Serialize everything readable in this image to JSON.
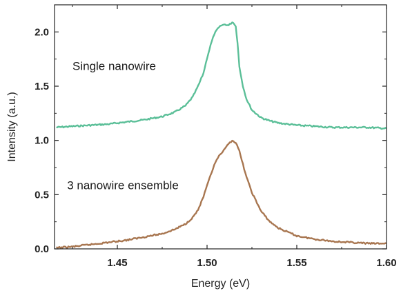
{
  "chart_data": {
    "type": "line",
    "title": "",
    "xlabel": "Energy (eV)",
    "ylabel": "Intensity (a.u.)",
    "xlim": [
      1.415,
      1.6
    ],
    "ylim": [
      0.0,
      2.25
    ],
    "xticks": [
      {
        "value": 1.45,
        "label": "1.45"
      },
      {
        "value": 1.5,
        "label": "1.50"
      },
      {
        "value": 1.55,
        "label": "1.55"
      },
      {
        "value": 1.6,
        "label": "1.60"
      }
    ],
    "yticks": [
      {
        "value": 0.0,
        "label": "0.0"
      },
      {
        "value": 0.5,
        "label": "0.5"
      },
      {
        "value": 1.0,
        "label": "1.0"
      },
      {
        "value": 1.5,
        "label": "1.5"
      },
      {
        "value": 2.0,
        "label": "2.0"
      }
    ],
    "grid": false,
    "series": [
      {
        "color": "#5bbf98",
        "x": [
          1.416,
          1.425,
          1.435,
          1.445,
          1.455,
          1.465,
          1.475,
          1.482,
          1.488,
          1.492,
          1.495,
          1.498,
          1.5,
          1.502,
          1.504,
          1.506,
          1.508,
          1.51,
          1.512,
          1.514,
          1.515,
          1.516,
          1.517,
          1.518,
          1.52,
          1.522,
          1.525,
          1.53,
          1.535,
          1.54,
          1.55,
          1.56,
          1.57,
          1.58,
          1.59,
          1.6
        ],
        "y": [
          1.12,
          1.13,
          1.14,
          1.15,
          1.17,
          1.19,
          1.22,
          1.26,
          1.32,
          1.4,
          1.5,
          1.62,
          1.76,
          1.88,
          1.98,
          2.03,
          2.06,
          2.07,
          2.06,
          2.09,
          2.08,
          2.05,
          1.9,
          1.68,
          1.5,
          1.38,
          1.28,
          1.21,
          1.18,
          1.16,
          1.14,
          1.13,
          1.12,
          1.12,
          1.12,
          1.11
        ]
      },
      {
        "color": "#a87650",
        "x": [
          1.416,
          1.425,
          1.435,
          1.445,
          1.455,
          1.465,
          1.475,
          1.482,
          1.488,
          1.492,
          1.495,
          1.498,
          1.5,
          1.502,
          1.504,
          1.506,
          1.508,
          1.51,
          1.512,
          1.514,
          1.516,
          1.518,
          1.52,
          1.522,
          1.525,
          1.53,
          1.535,
          1.54,
          1.55,
          1.56,
          1.57,
          1.58,
          1.59,
          1.6
        ],
        "y": [
          0.01,
          0.02,
          0.04,
          0.06,
          0.08,
          0.11,
          0.14,
          0.18,
          0.23,
          0.29,
          0.36,
          0.48,
          0.58,
          0.68,
          0.77,
          0.84,
          0.88,
          0.92,
          0.97,
          1.0,
          0.98,
          0.9,
          0.78,
          0.66,
          0.52,
          0.35,
          0.25,
          0.19,
          0.12,
          0.09,
          0.07,
          0.06,
          0.05,
          0.05
        ]
      }
    ],
    "annotations": [
      {
        "text": "Single nanowire",
        "x": 1.425,
        "y": 1.65
      },
      {
        "text": "3 nanowire ensemble",
        "x": 1.422,
        "y": 0.55
      }
    ]
  }
}
